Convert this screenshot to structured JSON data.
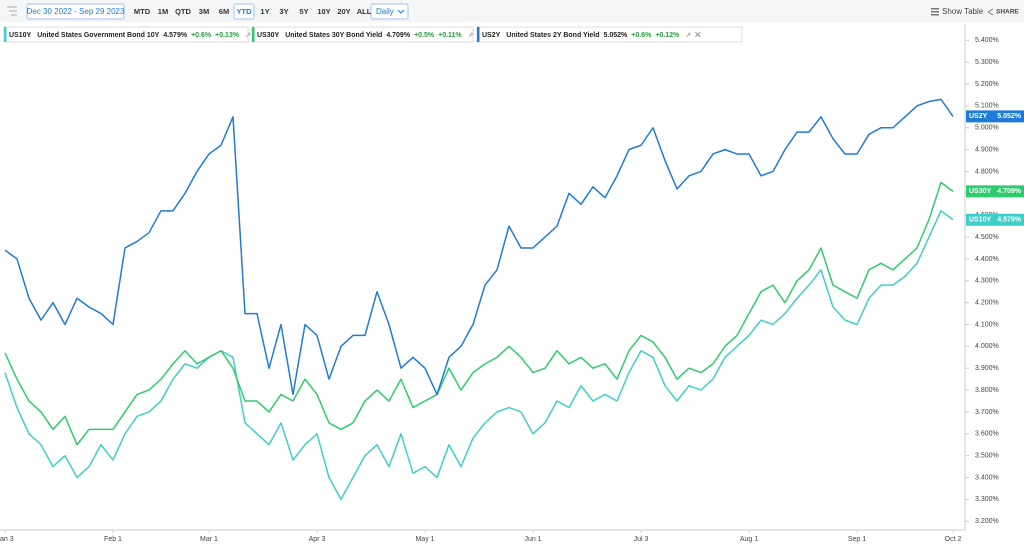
{
  "toolbar": {
    "date_range": "Dec 30 2022 - Sep 29 2023",
    "ranges": [
      "MTD",
      "1M",
      "QTD",
      "3M",
      "6M",
      "YTD",
      "1Y",
      "3Y",
      "5Y",
      "10Y",
      "20Y",
      "ALL"
    ],
    "active_range": "YTD",
    "interval": "Daily",
    "show_table": "Show Table",
    "share": "SHARE"
  },
  "chart_data": {
    "type": "line",
    "categories": [
      "an 3",
      null,
      null,
      null,
      null,
      null,
      null,
      null,
      null,
      "Feb 1",
      null,
      null,
      null,
      null,
      null,
      null,
      null,
      "Mar 1",
      null,
      null,
      null,
      null,
      null,
      null,
      null,
      null,
      "Apr 3",
      null,
      null,
      null,
      null,
      null,
      null,
      null,
      null,
      "May 1",
      null,
      null,
      null,
      null,
      null,
      null,
      null,
      null,
      "Jun 1",
      null,
      null,
      null,
      null,
      null,
      null,
      null,
      null,
      "Jul 3",
      null,
      null,
      null,
      null,
      null,
      null,
      null,
      null,
      "Aug 1",
      null,
      null,
      null,
      null,
      null,
      null,
      null,
      null,
      "Sep 1",
      null,
      null,
      null,
      null,
      null,
      null,
      null,
      "Oct 2"
    ],
    "ylim": [
      3.16,
      5.47
    ],
    "yticks": [
      {
        "value": 3.2,
        "label": "3.200%"
      },
      {
        "value": 3.3,
        "label": "3.300%"
      },
      {
        "value": 3.4,
        "label": "3.400%"
      },
      {
        "value": 3.5,
        "label": "3.500%"
      },
      {
        "value": 3.6,
        "label": "3.600%"
      },
      {
        "value": 3.7,
        "label": "3.700%"
      },
      {
        "value": 3.8,
        "label": "3.800%"
      },
      {
        "value": 3.9,
        "label": "3.900%"
      },
      {
        "value": 4.0,
        "label": "4.000%"
      },
      {
        "value": 4.1,
        "label": "4.100%"
      },
      {
        "value": 4.2,
        "label": "4.200%"
      },
      {
        "value": 4.3,
        "label": "4.300%"
      },
      {
        "value": 4.4,
        "label": "4.400%"
      },
      {
        "value": 4.5,
        "label": "4.500%"
      },
      {
        "value": 4.6,
        "label": "4.600%"
      },
      {
        "value": 4.7,
        "label": "4.700%"
      },
      {
        "value": 4.8,
        "label": "4.800%"
      },
      {
        "value": 4.9,
        "label": "4.900%"
      },
      {
        "value": 5.0,
        "label": "5.000%"
      },
      {
        "value": 5.1,
        "label": "5.100%"
      },
      {
        "value": 5.2,
        "label": "5.200%"
      },
      {
        "value": 5.3,
        "label": "5.300%"
      },
      {
        "value": 5.4,
        "label": "5.400%"
      }
    ],
    "grid": false,
    "series": [
      {
        "symbol": "US10Y",
        "name": "United States Government Bond 10Y",
        "color": "#3fcfc8",
        "last_label": "4.579%",
        "change": "+0.6%",
        "change_pct": "+0.13%",
        "values": [
          3.88,
          3.72,
          3.6,
          3.55,
          3.45,
          3.5,
          3.4,
          3.45,
          3.55,
          3.48,
          3.6,
          3.68,
          3.7,
          3.75,
          3.85,
          3.92,
          3.9,
          3.95,
          3.98,
          3.95,
          3.65,
          3.6,
          3.55,
          3.65,
          3.48,
          3.55,
          3.6,
          3.4,
          3.3,
          3.4,
          3.5,
          3.55,
          3.45,
          3.6,
          3.42,
          3.45,
          3.4,
          3.55,
          3.45,
          3.58,
          3.65,
          3.7,
          3.72,
          3.7,
          3.6,
          3.65,
          3.75,
          3.72,
          3.82,
          3.75,
          3.78,
          3.75,
          3.88,
          3.98,
          3.95,
          3.82,
          3.75,
          3.82,
          3.8,
          3.85,
          3.95,
          4.0,
          4.05,
          4.12,
          4.1,
          4.15,
          4.22,
          4.28,
          4.35,
          4.18,
          4.12,
          4.1,
          4.22,
          4.28,
          4.28,
          4.32,
          4.38,
          4.5,
          4.62,
          4.579
        ]
      },
      {
        "symbol": "US30Y",
        "name": "United States 30Y Bond Yield",
        "color": "#2ecc6e",
        "last_label": "4.709%",
        "change": "+0.5%",
        "change_pct": "+0.11%",
        "values": [
          3.97,
          3.85,
          3.75,
          3.7,
          3.62,
          3.68,
          3.55,
          3.62,
          3.62,
          3.62,
          3.7,
          3.78,
          3.8,
          3.85,
          3.92,
          3.98,
          3.92,
          3.95,
          3.98,
          3.9,
          3.75,
          3.75,
          3.7,
          3.78,
          3.75,
          3.85,
          3.78,
          3.65,
          3.62,
          3.65,
          3.75,
          3.8,
          3.75,
          3.85,
          3.72,
          3.75,
          3.78,
          3.9,
          3.8,
          3.88,
          3.92,
          3.95,
          4.0,
          3.95,
          3.88,
          3.9,
          3.98,
          3.92,
          3.95,
          3.9,
          3.92,
          3.85,
          3.98,
          4.05,
          4.02,
          3.95,
          3.85,
          3.9,
          3.88,
          3.92,
          4.0,
          4.05,
          4.15,
          4.25,
          4.28,
          4.2,
          4.3,
          4.35,
          4.45,
          4.28,
          4.25,
          4.22,
          4.35,
          4.38,
          4.35,
          4.4,
          4.45,
          4.58,
          4.75,
          4.709
        ]
      },
      {
        "symbol": "US2Y",
        "name": "United States 2Y Bond Yield",
        "color": "#1f7bd9",
        "last_label": "5.052%",
        "change": "+0.6%",
        "change_pct": "+0.12%",
        "values": [
          4.44,
          4.4,
          4.22,
          4.12,
          4.2,
          4.1,
          4.22,
          4.18,
          4.15,
          4.1,
          4.45,
          4.48,
          4.52,
          4.62,
          4.62,
          4.7,
          4.8,
          4.88,
          4.92,
          5.05,
          4.15,
          4.15,
          3.9,
          4.1,
          3.78,
          4.1,
          4.05,
          3.85,
          4.0,
          4.05,
          4.05,
          4.25,
          4.1,
          3.9,
          3.95,
          3.9,
          3.78,
          3.95,
          4.0,
          4.1,
          4.28,
          4.35,
          4.55,
          4.45,
          4.45,
          4.5,
          4.55,
          4.7,
          4.65,
          4.73,
          4.68,
          4.78,
          4.9,
          4.92,
          5.0,
          4.85,
          4.72,
          4.78,
          4.8,
          4.88,
          4.9,
          4.88,
          4.88,
          4.78,
          4.8,
          4.9,
          4.98,
          4.98,
          5.05,
          4.95,
          4.88,
          4.88,
          4.97,
          5.0,
          5.0,
          5.05,
          5.1,
          5.12,
          5.13,
          5.052
        ]
      }
    ]
  }
}
